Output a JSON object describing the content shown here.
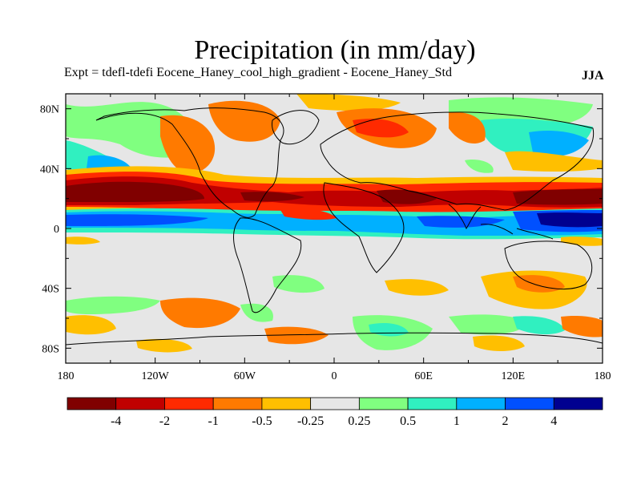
{
  "header": {
    "title": "Precipitation (in mm/day)",
    "subtitle": "Expt = tdefl-tdefi  Eocene_Haney_cool_high_gradient - Eocene_Haney_Std",
    "season": "JJA"
  },
  "axes": {
    "y_ticks": [
      "80N",
      "40N",
      "0",
      "40S",
      "80S"
    ],
    "y_values": [
      80,
      40,
      0,
      -40,
      -80
    ],
    "x_ticks": [
      "180",
      "120W",
      "60W",
      "0",
      "60E",
      "120E",
      "180"
    ],
    "x_values": [
      -180,
      -120,
      -60,
      0,
      60,
      120,
      180
    ],
    "lon_range": [
      -180,
      180
    ],
    "lat_range": [
      -90,
      90
    ]
  },
  "colorbar": {
    "colors": [
      "#800000",
      "#c00000",
      "#ff2a00",
      "#ff7a00",
      "#ffbf00",
      "#e6e6e6",
      "#80ff80",
      "#30f0c0",
      "#00b0ff",
      "#0050ff",
      "#000090"
    ],
    "labels": [
      "-4",
      "-2",
      "-1",
      "-0.5",
      "-0.25",
      "0.25",
      "0.5",
      "1",
      "2",
      "4"
    ]
  },
  "colors": {
    "background": "#e6e6e6",
    "coastline": "#000000"
  }
}
